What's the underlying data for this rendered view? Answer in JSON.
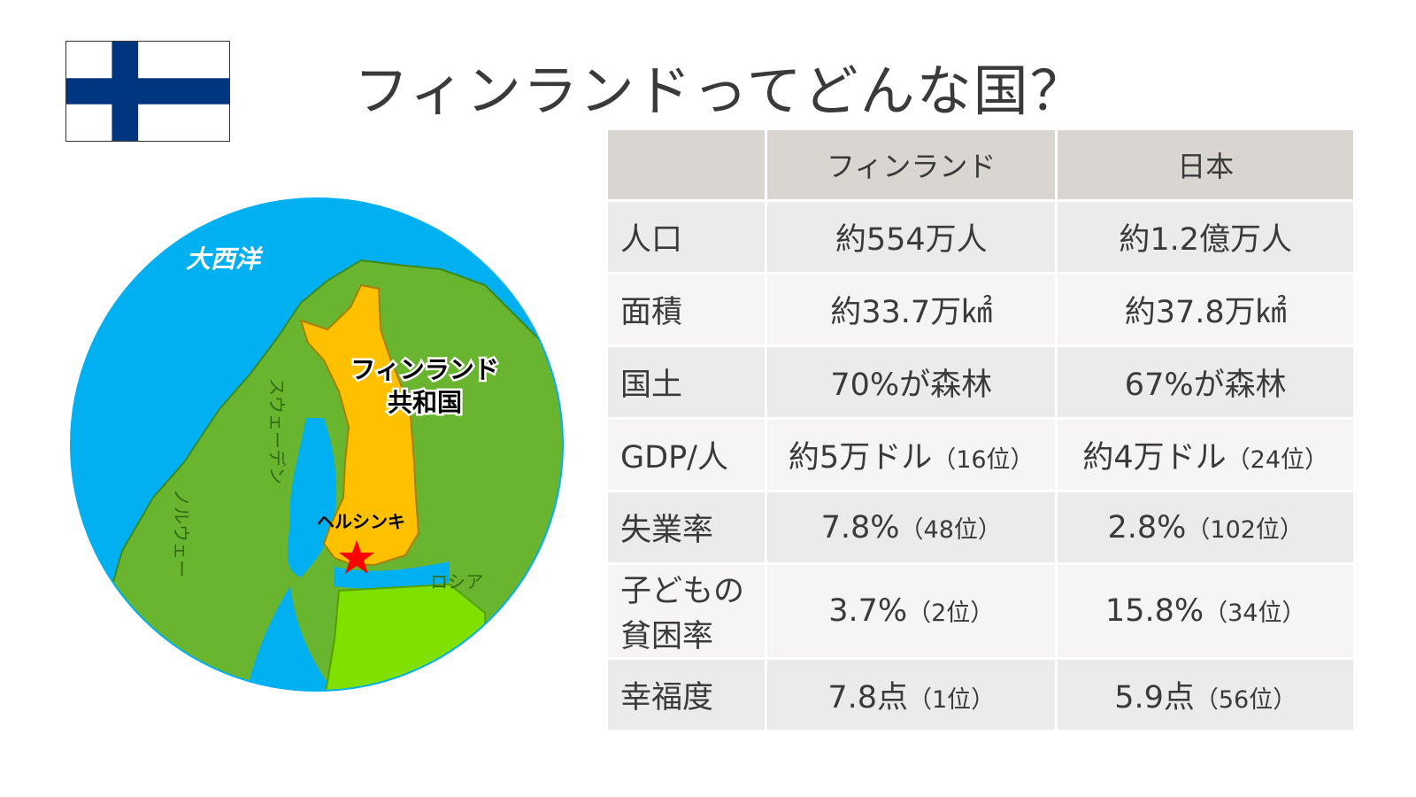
{
  "title": "フィンランドってどんな国？",
  "flag": {
    "icon": "finland-flag-icon",
    "colors": {
      "field": "#ffffff",
      "cross": "#003580"
    }
  },
  "map": {
    "icon": "nordic-map-icon",
    "labels": {
      "ocean": "大西洋",
      "country_line1": "フィンランド",
      "country_line2": "共和国",
      "sweden": "スウェーデン",
      "norway": "ノルウェー",
      "capital": "ヘルシンキ",
      "russia": "ロシア"
    },
    "colors": {
      "sea": "#00b0f0",
      "land": "#6ab530",
      "finland": "#ffc000",
      "estonia": "#80e000",
      "capital_star": "#ff0000"
    }
  },
  "table": {
    "headers": [
      "",
      "フィンランド",
      "日本"
    ],
    "rows": [
      {
        "label": "人口",
        "finland": "約554万人",
        "finland_rank": "",
        "japan": "約1.2億万人",
        "japan_rank": ""
      },
      {
        "label": "面積",
        "finland": "約33.7万㎢",
        "finland_rank": "",
        "japan": "約37.8万㎢",
        "japan_rank": ""
      },
      {
        "label": "国土",
        "finland": "70%が森林",
        "finland_rank": "",
        "japan": "67%が森林",
        "japan_rank": ""
      },
      {
        "label": "GDP/人",
        "finland": "約5万ドル",
        "finland_rank": "（16位）",
        "japan": "約4万ドル",
        "japan_rank": "（24位）"
      },
      {
        "label": "失業率",
        "finland": "7.8%",
        "finland_rank": "（48位）",
        "japan": "2.8%",
        "japan_rank": "（102位）"
      },
      {
        "label_line1": "子どもの",
        "label_line2": "貧困率",
        "finland": "3.7%",
        "finland_rank": "（2位）",
        "japan": "15.8%",
        "japan_rank": "（34位）"
      },
      {
        "label": "幸福度",
        "finland": "7.8点",
        "finland_rank": "（1位）",
        "japan": "5.9点",
        "japan_rank": "（56位）"
      }
    ]
  }
}
